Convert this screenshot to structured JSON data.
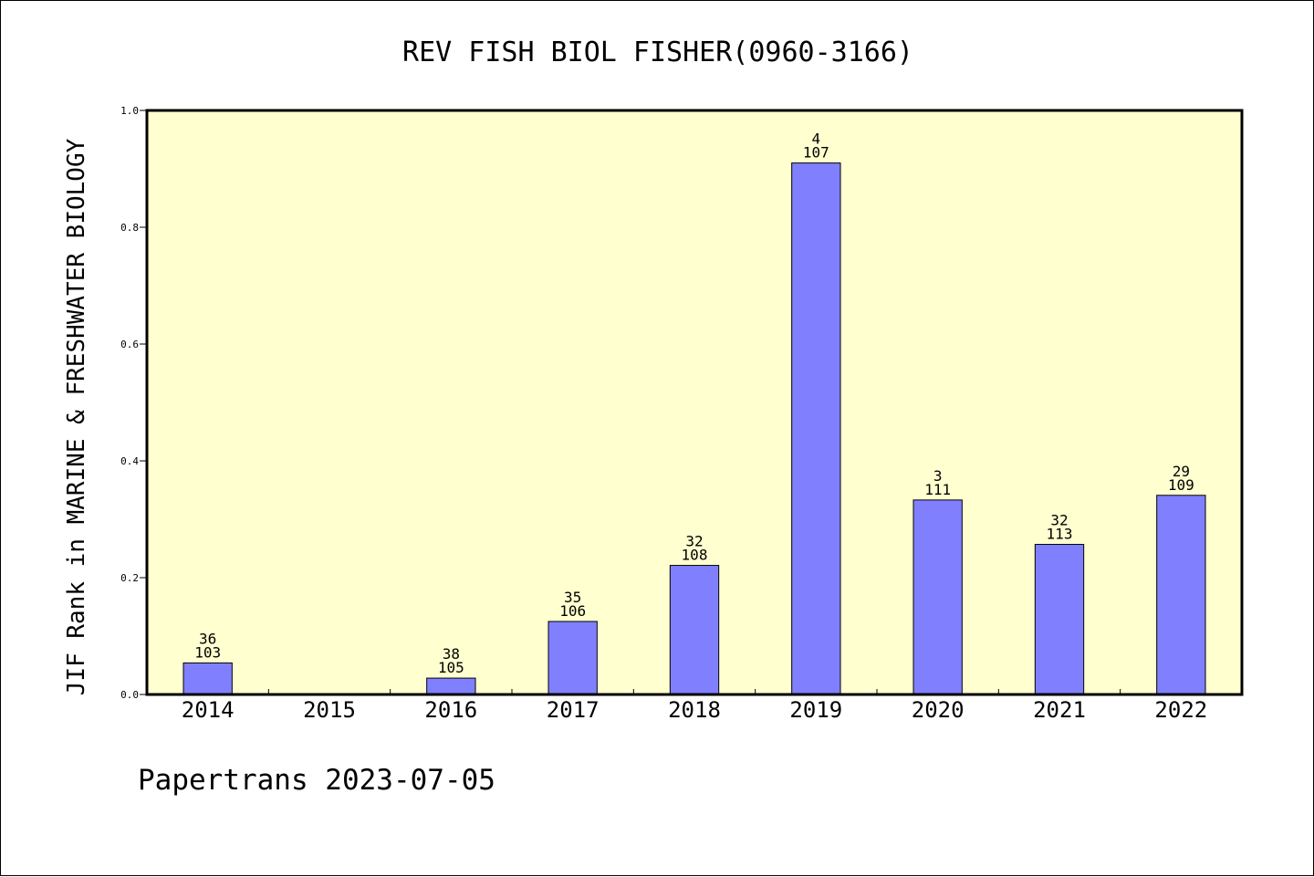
{
  "chart_data": {
    "type": "bar",
    "title": "REV FISH BIOL FISHER(0960-3166)",
    "ylabel": "JIF Rank in MARINE & FRESHWATER BIOLOGY",
    "xlabel": "",
    "footer": "Papertrans 2023-07-05",
    "ylim": [
      0,
      1.0
    ],
    "yticks": [
      "0.0",
      "0.2",
      "0.4",
      "0.6",
      "0.8",
      "1.0"
    ],
    "categories": [
      "2014",
      "2015",
      "2016",
      "2017",
      "2018",
      "2019",
      "2020",
      "2021",
      "2022"
    ],
    "values": [
      0.054,
      null,
      0.028,
      0.125,
      0.221,
      0.91,
      0.333,
      0.257,
      0.341
    ],
    "labels": [
      {
        "rank": "36",
        "total": "103"
      },
      null,
      {
        "rank": "38",
        "total": "105"
      },
      {
        "rank": "35",
        "total": "106"
      },
      {
        "rank": "32",
        "total": "108"
      },
      {
        "rank": "4",
        "total": "107"
      },
      {
        "rank": "3",
        "total": "111"
      },
      {
        "rank": "32",
        "total": "113"
      },
      {
        "rank": "29",
        "total": "109"
      }
    ],
    "grid": false,
    "colors": {
      "bar_fill": "#8080ff",
      "bar_stroke": "#000000",
      "plot_background": "#ffffd0",
      "axis": "#000000",
      "text": "#000000"
    }
  }
}
